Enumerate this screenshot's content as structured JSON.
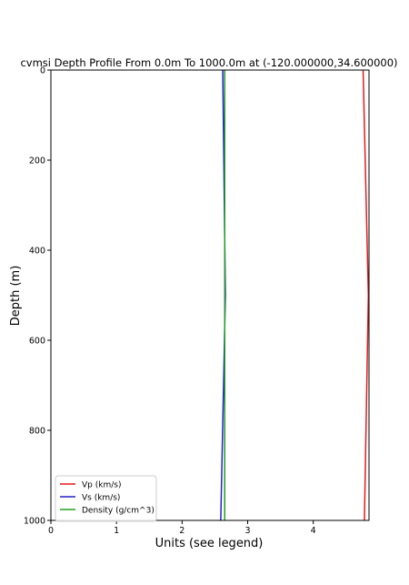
{
  "chart_data": {
    "type": "line",
    "title": "cvmsi Depth Profile From 0.0m To 1000.0m at (-120.000000,34.600000)",
    "xlabel": "Units (see legend)",
    "ylabel": "Depth (m)",
    "xlim": [
      0,
      4.85
    ],
    "ylim": [
      1000,
      0
    ],
    "y_inverted": true,
    "xticks": [
      0,
      1,
      2,
      3,
      4
    ],
    "yticks": [
      0,
      200,
      400,
      600,
      800,
      1000
    ],
    "grid": false,
    "legend_position": "lower-left",
    "series": [
      {
        "name": "Vp (km/s)",
        "color": "#e41a1c",
        "points": [
          {
            "x": 4.76,
            "depth": 0
          },
          {
            "x": 4.84,
            "depth": 500
          },
          {
            "x": 4.78,
            "depth": 1000
          }
        ]
      },
      {
        "name": "Vs (km/s)",
        "color": "#2222cc",
        "points": [
          {
            "x": 2.62,
            "depth": 0
          },
          {
            "x": 2.66,
            "depth": 500
          },
          {
            "x": 2.59,
            "depth": 1000
          }
        ]
      },
      {
        "name": "Density (g/cm^3)",
        "color": "#22a022",
        "points": [
          {
            "x": 2.65,
            "depth": 0
          },
          {
            "x": 2.65,
            "depth": 500
          },
          {
            "x": 2.65,
            "depth": 1000
          }
        ]
      }
    ]
  }
}
